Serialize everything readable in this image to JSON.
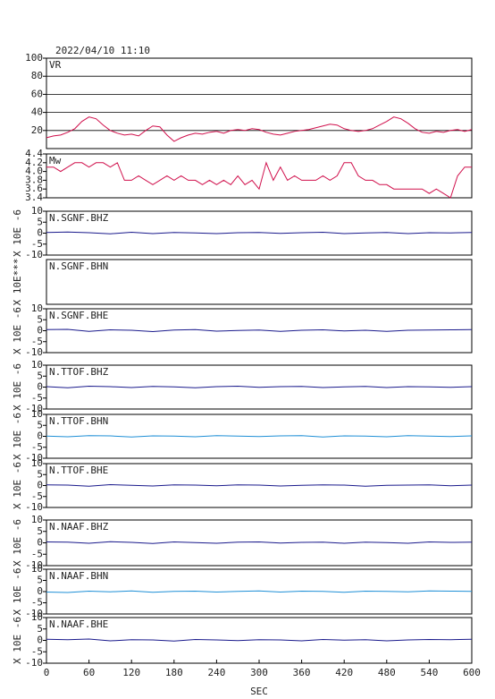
{
  "chart_data": [
    {
      "type": "line",
      "title": "2022/04/10 11:10",
      "name": "VR",
      "color": "#d0104c",
      "x": [
        0,
        10,
        20,
        30,
        40,
        50,
        60,
        70,
        80,
        90,
        100,
        110,
        120,
        130,
        140,
        150,
        160,
        170,
        180,
        190,
        200,
        210,
        220,
        230,
        240,
        250,
        260,
        270,
        280,
        290,
        300,
        310,
        320,
        330,
        340,
        350,
        360,
        370,
        380,
        390,
        400,
        410,
        420,
        430,
        440,
        450,
        460,
        470,
        480,
        490,
        500,
        510,
        520,
        530,
        540,
        550,
        560,
        570,
        580,
        590,
        600
      ],
      "values": [
        12,
        14,
        15,
        18,
        22,
        30,
        35,
        33,
        26,
        20,
        17,
        15,
        16,
        14,
        20,
        25,
        24,
        15,
        8,
        12,
        15,
        17,
        16,
        18,
        19,
        17,
        20,
        21,
        20,
        22,
        21,
        18,
        16,
        15,
        17,
        19,
        20,
        21,
        23,
        25,
        27,
        26,
        22,
        20,
        19,
        20,
        22,
        26,
        30,
        35,
        33,
        28,
        22,
        18,
        17,
        19,
        18,
        20,
        21,
        19,
        21
      ],
      "xlim": [
        0,
        600
      ],
      "ylim": [
        0,
        100
      ],
      "yticks": [
        20,
        40,
        60,
        80,
        100
      ],
      "grid": true
    },
    {
      "type": "line",
      "name": "Mw",
      "color": "#d0104c",
      "x": [
        0,
        10,
        20,
        30,
        40,
        50,
        60,
        70,
        80,
        90,
        100,
        110,
        120,
        130,
        140,
        150,
        160,
        170,
        180,
        190,
        200,
        210,
        220,
        230,
        240,
        250,
        260,
        270,
        280,
        290,
        300,
        310,
        320,
        330,
        340,
        350,
        360,
        370,
        380,
        390,
        400,
        410,
        420,
        430,
        440,
        450,
        460,
        470,
        480,
        490,
        500,
        510,
        520,
        530,
        540,
        550,
        560,
        570,
        580,
        590,
        600
      ],
      "values": [
        4.1,
        4.1,
        4.0,
        4.1,
        4.2,
        4.2,
        4.1,
        4.2,
        4.2,
        4.1,
        4.2,
        3.8,
        3.8,
        3.9,
        3.8,
        3.7,
        3.8,
        3.9,
        3.8,
        3.9,
        3.8,
        3.8,
        3.7,
        3.8,
        3.7,
        3.8,
        3.7,
        3.9,
        3.7,
        3.8,
        3.6,
        4.2,
        3.8,
        4.1,
        3.8,
        3.9,
        3.8,
        3.8,
        3.8,
        3.9,
        3.8,
        3.9,
        4.2,
        4.2,
        3.9,
        3.8,
        3.8,
        3.7,
        3.7,
        3.6,
        3.6,
        3.6,
        3.6,
        3.6,
        3.5,
        3.6,
        3.5,
        3.4,
        3.9,
        4.1,
        4.1
      ],
      "xlim": [
        0,
        600
      ],
      "ylim": [
        3.4,
        4.4
      ],
      "yticks": [
        3.4,
        3.6,
        3.8,
        {
          "value": 4,
          "label": "4.0"
        },
        4.2,
        4.4
      ]
    },
    {
      "type": "line",
      "name": "N.SGNF.BHZ",
      "ylabel": "X 10E -6",
      "color": "#1a1a8c",
      "x": [
        0,
        30,
        60,
        90,
        120,
        150,
        180,
        210,
        240,
        270,
        300,
        330,
        360,
        390,
        420,
        450,
        480,
        510,
        540,
        570,
        600
      ],
      "values": [
        0.3,
        0.5,
        0.2,
        -0.3,
        0.4,
        -0.2,
        0.3,
        0.1,
        -0.2,
        0.2,
        0.3,
        -0.1,
        0.2,
        0.4,
        -0.2,
        0.1,
        0.3,
        -0.2,
        0.2,
        0.1,
        0.3
      ],
      "xlim": [
        0,
        600
      ],
      "ylim": [
        -10,
        10
      ],
      "yticks": [
        -10,
        -5,
        0,
        5,
        10
      ]
    },
    {
      "type": "line",
      "name": "N.SGNF.BHN",
      "ylabel": "X 10E***",
      "xlim": [
        0,
        600
      ],
      "ylim": [
        -10,
        10
      ]
    },
    {
      "type": "line",
      "name": "N.SGNF.BHE",
      "ylabel": "X 10E -6",
      "color": "#1a1a8c",
      "x": [
        0,
        30,
        60,
        90,
        120,
        150,
        180,
        210,
        240,
        270,
        300,
        330,
        360,
        390,
        420,
        450,
        480,
        510,
        540,
        570,
        600
      ],
      "values": [
        0.5,
        0.6,
        -0.3,
        0.4,
        0.2,
        -0.4,
        0.3,
        0.5,
        -0.2,
        0.1,
        0.3,
        -0.3,
        0.2,
        0.4,
        -0.1,
        0.2,
        -0.3,
        0.2,
        0.3,
        0.4,
        0.5
      ],
      "xlim": [
        0,
        600
      ],
      "ylim": [
        -10,
        10
      ],
      "yticks": [
        -10,
        -5,
        0,
        5,
        10
      ]
    },
    {
      "type": "line",
      "name": "N.TTOF.BHZ",
      "ylabel": "X 10E -6",
      "color": "#1a1a8c",
      "x": [
        0,
        30,
        60,
        90,
        120,
        150,
        180,
        210,
        240,
        270,
        300,
        330,
        360,
        390,
        420,
        450,
        480,
        510,
        540,
        570,
        600
      ],
      "values": [
        0.2,
        -0.3,
        0.4,
        0.2,
        -0.2,
        0.3,
        0.1,
        -0.3,
        0.2,
        0.4,
        -0.1,
        0.2,
        0.3,
        -0.2,
        0.1,
        0.3,
        -0.2,
        0.2,
        0.1,
        -0.1,
        0.2
      ],
      "xlim": [
        0,
        600
      ],
      "ylim": [
        -10,
        10
      ],
      "yticks": [
        -10,
        -5,
        0,
        5,
        10
      ]
    },
    {
      "type": "line",
      "name": "N.TTOF.BHN",
      "ylabel": "X 10E -6",
      "color": "#1e8fd6",
      "x": [
        0,
        30,
        60,
        90,
        120,
        150,
        180,
        210,
        240,
        270,
        300,
        330,
        360,
        390,
        420,
        450,
        480,
        510,
        540,
        570,
        600
      ],
      "values": [
        0.1,
        -0.2,
        0.3,
        0.2,
        -0.3,
        0.2,
        0.1,
        -0.2,
        0.3,
        0.1,
        -0.1,
        0.2,
        0.3,
        -0.3,
        0.2,
        0.1,
        -0.2,
        0.3,
        0.1,
        -0.1,
        0.2
      ],
      "xlim": [
        0,
        600
      ],
      "ylim": [
        -10,
        10
      ],
      "yticks": [
        -10,
        -5,
        0,
        5,
        10
      ]
    },
    {
      "type": "line",
      "name": "N.TTOF.BHE",
      "ylabel": "X 10E -6",
      "color": "#1a1a8c",
      "x": [
        0,
        30,
        60,
        90,
        120,
        150,
        180,
        210,
        240,
        270,
        300,
        330,
        360,
        390,
        420,
        450,
        480,
        510,
        540,
        570,
        600
      ],
      "values": [
        0.3,
        0.2,
        -0.3,
        0.4,
        0.1,
        -0.2,
        0.3,
        0.2,
        -0.1,
        0.3,
        0.2,
        -0.2,
        0.1,
        0.3,
        0.2,
        -0.3,
        0.1,
        0.2,
        0.3,
        -0.1,
        0.2
      ],
      "xlim": [
        0,
        600
      ],
      "ylim": [
        -10,
        10
      ],
      "yticks": [
        -10,
        -5,
        0,
        5,
        10
      ]
    },
    {
      "type": "line",
      "name": "N.NAAF.BHZ",
      "ylabel": "X 10E -6",
      "color": "#1a1a8c",
      "x": [
        0,
        30,
        60,
        90,
        120,
        150,
        180,
        210,
        240,
        270,
        300,
        330,
        360,
        390,
        420,
        450,
        480,
        510,
        540,
        570,
        600
      ],
      "values": [
        0.4,
        0.3,
        -0.2,
        0.5,
        0.2,
        -0.3,
        0.4,
        0.1,
        -0.2,
        0.3,
        0.4,
        -0.1,
        0.2,
        0.3,
        -0.2,
        0.3,
        0.1,
        -0.2,
        0.4,
        0.2,
        0.3
      ],
      "xlim": [
        0,
        600
      ],
      "ylim": [
        -10,
        10
      ],
      "yticks": [
        -10,
        -5,
        0,
        5,
        10
      ]
    },
    {
      "type": "line",
      "name": "N.NAAF.BHN",
      "ylabel": "X 10E -6",
      "color": "#1e8fd6",
      "x": [
        0,
        30,
        60,
        90,
        120,
        150,
        180,
        210,
        240,
        270,
        300,
        330,
        360,
        390,
        420,
        450,
        480,
        510,
        540,
        570,
        600
      ],
      "values": [
        -0.2,
        -0.4,
        0.2,
        -0.1,
        0.3,
        -0.3,
        0.1,
        0.2,
        -0.2,
        0.1,
        0.3,
        -0.2,
        0.2,
        0.1,
        -0.3,
        0.2,
        0.1,
        -0.1,
        0.3,
        0.2,
        0.1
      ],
      "xlim": [
        0,
        600
      ],
      "ylim": [
        -10,
        10
      ],
      "yticks": [
        -10,
        -5,
        0,
        5,
        10
      ]
    },
    {
      "type": "line",
      "name": "N.NAAF.BHE",
      "ylabel": "X 10E -6",
      "xlabel": "SEC",
      "color": "#1a1a8c",
      "x": [
        0,
        30,
        60,
        90,
        120,
        150,
        180,
        210,
        240,
        270,
        300,
        330,
        360,
        390,
        420,
        450,
        480,
        510,
        540,
        570,
        600
      ],
      "values": [
        0.5,
        0.3,
        0.6,
        -0.2,
        0.3,
        0.2,
        -0.3,
        0.4,
        0.2,
        -0.1,
        0.3,
        0.2,
        -0.2,
        0.4,
        0.1,
        0.3,
        -0.2,
        0.2,
        0.4,
        0.3,
        0.5
      ],
      "xlim": [
        0,
        600
      ],
      "ylim": [
        -10,
        10
      ],
      "yticks": [
        -10,
        -5,
        0,
        5,
        10
      ],
      "xticks": [
        0,
        60,
        120,
        180,
        240,
        300,
        360,
        420,
        480,
        540,
        600
      ]
    }
  ]
}
